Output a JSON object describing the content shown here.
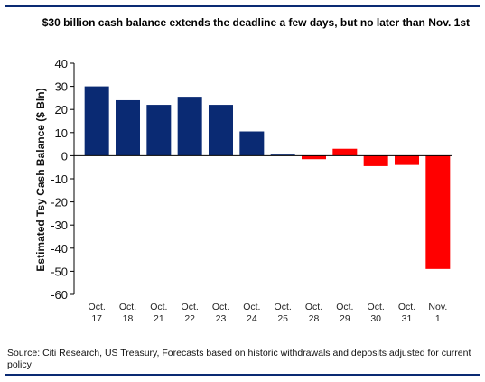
{
  "title": "$30 billion cash balance extends the deadline a few days, but no later than Nov. 1st",
  "source": "Source: Citi Research, US Treasury, Forecasts based on historic withdrawals and deposits adjusted for current policy",
  "chart_data": {
    "type": "bar",
    "title": "$30 billion cash balance extends the deadline a few days, but no later than Nov. 1st",
    "xlabel": "",
    "ylabel": "Estimated Tsy Cash Balance ($ Bln)",
    "ylim": [
      -60,
      40
    ],
    "yticks": [
      40,
      30,
      20,
      10,
      0,
      -10,
      -20,
      -30,
      -40,
      -50,
      -60
    ],
    "grid": false,
    "categories": [
      [
        "Oct.",
        "17"
      ],
      [
        "Oct.",
        "18"
      ],
      [
        "Oct.",
        "21"
      ],
      [
        "Oct.",
        "22"
      ],
      [
        "Oct.",
        "23"
      ],
      [
        "Oct.",
        "24"
      ],
      [
        "Oct.",
        "25"
      ],
      [
        "Oct.",
        "28"
      ],
      [
        "Oct.",
        "29"
      ],
      [
        "Oct.",
        "30"
      ],
      [
        "Oct.",
        "31"
      ],
      [
        "Nov.",
        "1"
      ]
    ],
    "values": [
      30,
      24,
      22,
      25.5,
      22,
      10.5,
      0.5,
      -1.5,
      3,
      -4.5,
      -4,
      -49
    ],
    "colors": {
      "actual": "#0a2a73",
      "forecast": "#ff0000"
    },
    "bar_color_keys": [
      "actual",
      "actual",
      "actual",
      "actual",
      "actual",
      "actual",
      "actual",
      "forecast",
      "forecast",
      "forecast",
      "forecast",
      "forecast"
    ]
  }
}
